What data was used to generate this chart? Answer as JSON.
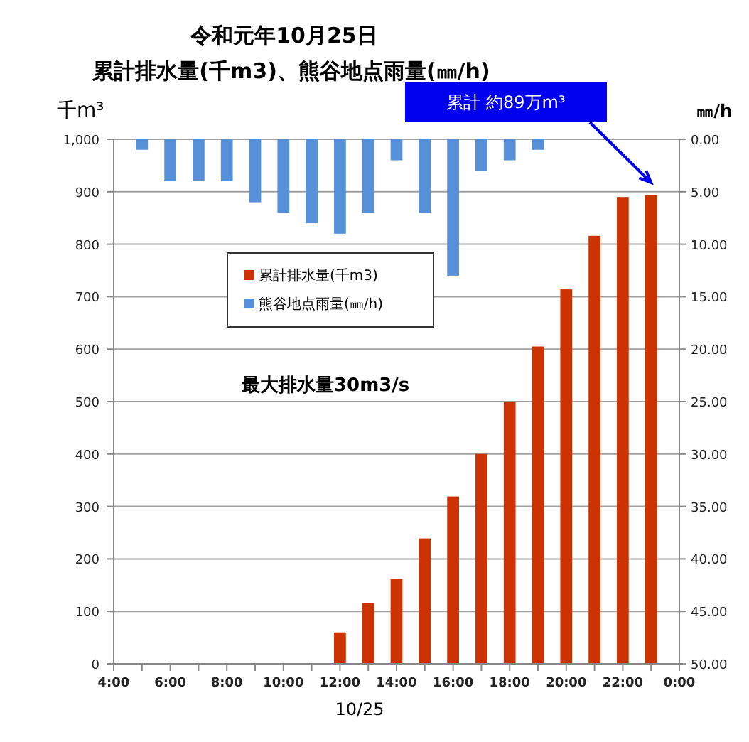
{
  "chart_data": {
    "type": "bar",
    "title": "令和元年10月25日",
    "subtitle": "累計排水量(千m3)、熊谷地点雨量(㎜/h)",
    "xlabel": "10/25",
    "ylabel": "千m³",
    "y2label": "㎜/h",
    "series": [
      {
        "name": "累計排水量(千m3)",
        "color": "#cc3300",
        "x": [
          12,
          13,
          14,
          15,
          16,
          17,
          18,
          19,
          20,
          21,
          22,
          23
        ],
        "values": [
          60,
          116,
          162,
          239,
          319,
          400,
          500,
          605,
          714,
          816,
          890,
          893
        ]
      },
      {
        "name": "熊谷地点雨量(㎜/h)",
        "color": "#5590d8",
        "axis": "y2",
        "x": [
          5,
          6,
          7,
          8,
          9,
          10,
          11,
          12,
          13,
          14,
          15,
          16,
          17,
          18,
          19
        ],
        "values": [
          1,
          4,
          4,
          4,
          6,
          7,
          8,
          9,
          7,
          2,
          7,
          13,
          3,
          2,
          1
        ]
      }
    ],
    "xlim": [
      4,
      24
    ],
    "xticks": [
      {
        "value": 4,
        "label": "4:00"
      },
      {
        "value": 5,
        "label": null
      },
      {
        "value": 6,
        "label": "6:00"
      },
      {
        "value": 7,
        "label": null
      },
      {
        "value": 8,
        "label": "8:00"
      },
      {
        "value": 9,
        "label": null
      },
      {
        "value": 10,
        "label": "10:00"
      },
      {
        "value": 11,
        "label": null
      },
      {
        "value": 12,
        "label": "12:00"
      },
      {
        "value": 13,
        "label": null
      },
      {
        "value": 14,
        "label": "14:00"
      },
      {
        "value": 15,
        "label": null
      },
      {
        "value": 16,
        "label": "16:00"
      },
      {
        "value": 17,
        "label": null
      },
      {
        "value": 18,
        "label": "18:00"
      },
      {
        "value": 19,
        "label": null
      },
      {
        "value": 20,
        "label": "20:00"
      },
      {
        "value": 21,
        "label": null
      },
      {
        "value": 22,
        "label": "22:00"
      },
      {
        "value": 23,
        "label": null
      },
      {
        "value": 24,
        "label": "0:00"
      }
    ],
    "ylim": [
      0,
      1000
    ],
    "yticks": [
      0,
      100,
      200,
      300,
      400,
      500,
      600,
      700,
      800,
      900,
      {
        "value": 1000,
        "label": "1,000"
      }
    ],
    "y2lim": [
      50,
      0
    ],
    "y2ticks": [
      {
        "value": 0,
        "label": "0.00"
      },
      {
        "value": 5,
        "label": "5.00"
      },
      {
        "value": 10,
        "label": "10.00"
      },
      {
        "value": 15,
        "label": "15.00"
      },
      {
        "value": 20,
        "label": "20.00"
      },
      {
        "value": 25,
        "label": "25.00"
      },
      {
        "value": 30,
        "label": "30.00"
      },
      {
        "value": 35,
        "label": "35.00"
      },
      {
        "value": 40,
        "label": "40.00"
      },
      {
        "value": 45,
        "label": "45.00"
      },
      {
        "value": 50,
        "label": "50.00"
      }
    ],
    "grid": "y",
    "legend": "top left",
    "annotations": [
      "最大排水量30m3/s",
      "累計 約89万m³"
    ]
  }
}
